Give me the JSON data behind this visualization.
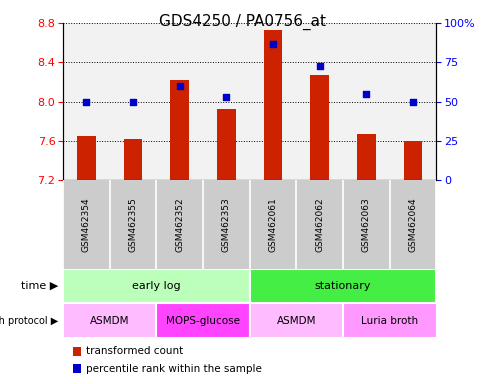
{
  "title": "GDS4250 / PA0756_at",
  "samples": [
    "GSM462354",
    "GSM462355",
    "GSM462352",
    "GSM462353",
    "GSM462061",
    "GSM462062",
    "GSM462063",
    "GSM462064"
  ],
  "bar_values": [
    7.65,
    7.62,
    8.22,
    7.93,
    8.73,
    8.27,
    7.67,
    7.6
  ],
  "percentile_values": [
    50,
    50,
    60,
    53,
    87,
    73,
    55,
    50
  ],
  "ylim_left": [
    7.2,
    8.8
  ],
  "ylim_right": [
    0,
    100
  ],
  "yticks_left": [
    7.2,
    7.6,
    8.0,
    8.4,
    8.8
  ],
  "yticks_right": [
    0,
    25,
    50,
    75,
    100
  ],
  "bar_color": "#cc2200",
  "dot_color": "#0000cc",
  "bar_bottom": 7.2,
  "time_groups": [
    {
      "label": "early log",
      "start": 0,
      "end": 4,
      "color": "#bbffbb"
    },
    {
      "label": "stationary",
      "start": 4,
      "end": 8,
      "color": "#44ee44"
    }
  ],
  "protocol_groups": [
    {
      "label": "ASMDM",
      "start": 0,
      "end": 2,
      "color": "#ffbbff"
    },
    {
      "label": "MOPS-glucose",
      "start": 2,
      "end": 4,
      "color": "#ff44ff"
    },
    {
      "label": "ASMDM",
      "start": 4,
      "end": 6,
      "color": "#ffbbff"
    },
    {
      "label": "Luria broth",
      "start": 6,
      "end": 8,
      "color": "#ff99ff"
    }
  ],
  "legend_bar_label": "transformed count",
  "legend_dot_label": "percentile rank within the sample",
  "title_fontsize": 11,
  "tick_fontsize": 8,
  "sample_label_fontsize": 6.5,
  "row_fontsize": 8,
  "background_color": "#ffffff",
  "sample_area_color": "#cccccc"
}
